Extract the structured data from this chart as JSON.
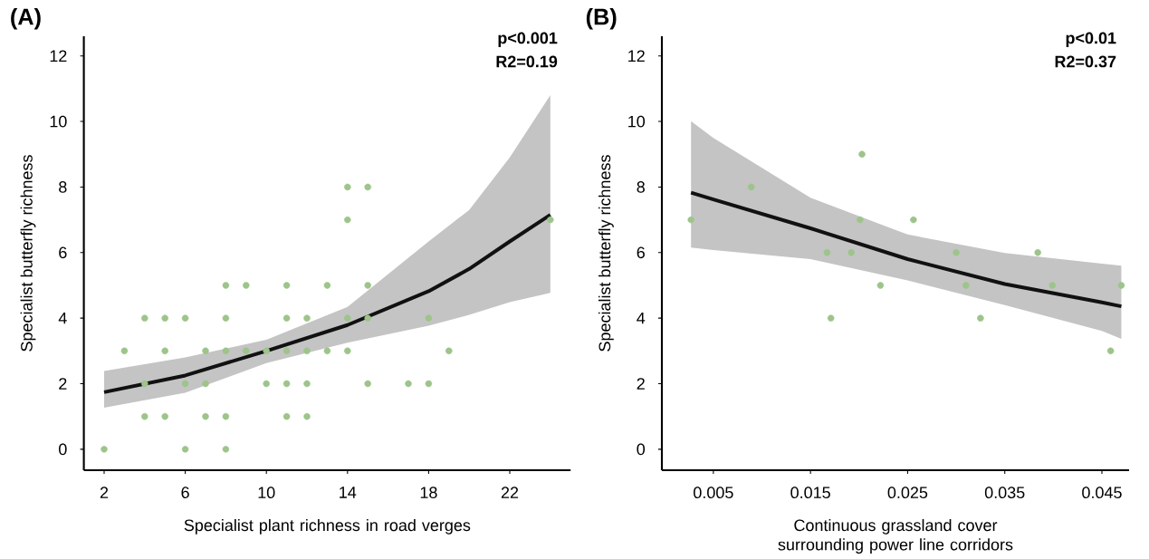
{
  "chart_data": [
    {
      "type": "scatter",
      "title": "(A)",
      "xlabel": "Specialist plant richness in road verges",
      "ylabel": "Specialist butterfly richness",
      "annotations": [
        "p<0.001",
        "R2=0.19"
      ],
      "xlim": [
        1,
        25
      ],
      "ylim": [
        -0.64,
        12.6
      ],
      "xticks": [
        2,
        6,
        10,
        14,
        18,
        22
      ],
      "yticks": [
        0,
        2,
        4,
        6,
        8,
        10,
        12
      ],
      "series": [
        {
          "color": "#9dc48a",
          "marker": "circle",
          "x": [
            14,
            15,
            14,
            24,
            8,
            9,
            11,
            13,
            15,
            4,
            5,
            6,
            8,
            11,
            12,
            14,
            15,
            18,
            3,
            5,
            7,
            8,
            9,
            10,
            11,
            12,
            13,
            14,
            19,
            4,
            6,
            7,
            10,
            11,
            12,
            15,
            17,
            18,
            4,
            5,
            7,
            8,
            11,
            12,
            2,
            6,
            8
          ],
          "values": [
            8,
            8,
            7,
            7,
            5,
            5,
            5,
            5,
            5,
            4,
            4,
            4,
            4,
            4,
            4,
            4,
            4,
            4,
            3,
            3,
            3,
            3,
            3,
            3,
            3,
            3,
            3,
            3,
            3,
            2,
            2,
            2,
            2,
            2,
            2,
            2,
            2,
            2,
            1,
            1,
            1,
            1,
            1,
            1,
            0,
            0,
            0
          ]
        },
        {
          "type": "line",
          "color": "#111111",
          "marker": "none",
          "x": [
            2,
            6,
            10,
            14,
            18,
            20,
            22,
            24
          ],
          "values": [
            1.74,
            2.25,
            3.0,
            3.79,
            4.82,
            5.5,
            6.34,
            7.15
          ],
          "lower": [
            1.27,
            1.72,
            2.63,
            3.25,
            3.77,
            4.1,
            4.49,
            4.77
          ],
          "upper": [
            2.39,
            2.8,
            3.34,
            4.34,
            6.34,
            7.3,
            8.9,
            10.8
          ]
        }
      ]
    },
    {
      "type": "scatter",
      "title": "(B)",
      "xlabel": "Continuous grassland cover surrounding power line corridors",
      "ylabel": "Specialist butterfly richness",
      "annotations": [
        "p<0.01",
        "R2=0.37"
      ],
      "xlim": [
        -0.0003,
        0.0478
      ],
      "ylim": [
        -0.64,
        12.6
      ],
      "xticks": [
        0.005,
        0.015,
        0.025,
        0.035,
        0.045
      ],
      "yticks": [
        0,
        2,
        4,
        6,
        8,
        10,
        12
      ],
      "series": [
        {
          "color": "#9dc48a",
          "marker": "circle",
          "x": [
            0.0027,
            0.0089,
            0.0203,
            0.0201,
            0.0256,
            0.0167,
            0.0192,
            0.03,
            0.0384,
            0.0222,
            0.031,
            0.0399,
            0.047,
            0.0171,
            0.0325,
            0.0459
          ],
          "values": [
            7,
            8,
            9,
            7,
            7,
            6,
            6,
            6,
            6,
            5,
            5,
            5,
            5,
            4,
            4,
            3
          ]
        },
        {
          "type": "line",
          "color": "#111111",
          "marker": "none",
          "x": [
            0.0027,
            0.005,
            0.015,
            0.025,
            0.035,
            0.045,
            0.047
          ],
          "values": [
            7.83,
            7.62,
            6.74,
            5.8,
            5.04,
            4.48,
            4.36
          ],
          "lower": [
            6.15,
            6.08,
            5.8,
            5.15,
            4.4,
            3.61,
            3.37
          ],
          "upper": [
            10.01,
            9.5,
            7.67,
            6.55,
            5.99,
            5.66,
            5.6
          ]
        }
      ]
    }
  ]
}
